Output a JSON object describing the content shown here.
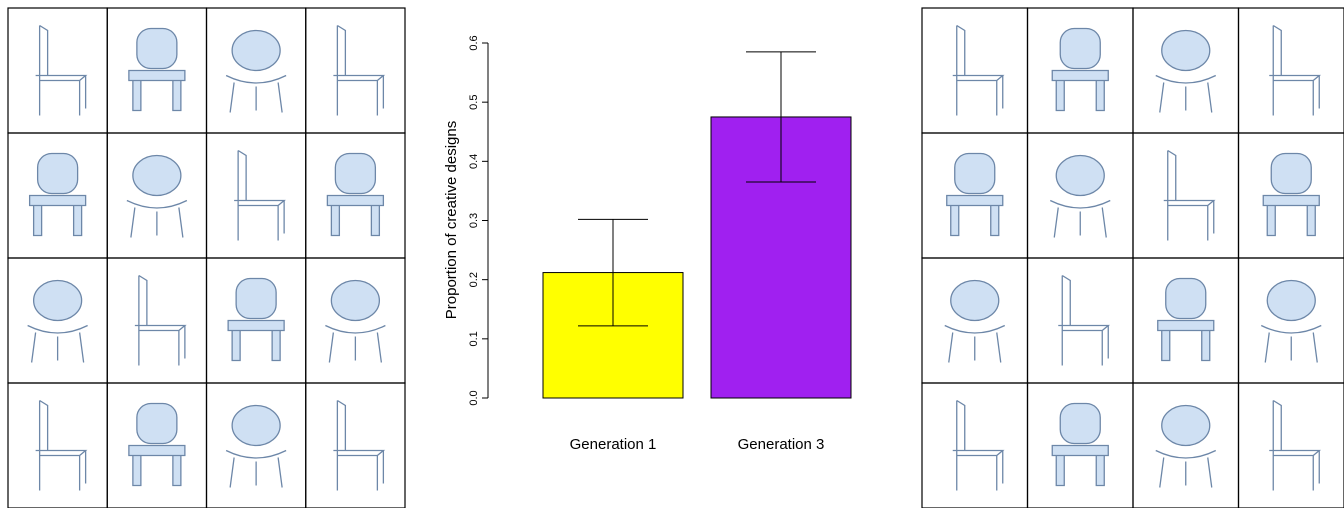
{
  "chart_data": {
    "type": "bar",
    "y_label": "Proportion of creative designs",
    "categories": [
      "Generation 1",
      "Generation 3"
    ],
    "series": [
      {
        "values": [
          0.212,
          0.475
        ],
        "errors": [
          0.09,
          0.11
        ],
        "colors": [
          "#ffff00",
          "#a020f0"
        ]
      }
    ],
    "ylim": [
      0,
      0.6
    ],
    "yticks": [
      {
        "value": 0,
        "label": "0.0"
      },
      0.1,
      0.2,
      0.3,
      0.4,
      0.5,
      0.6
    ]
  }
}
